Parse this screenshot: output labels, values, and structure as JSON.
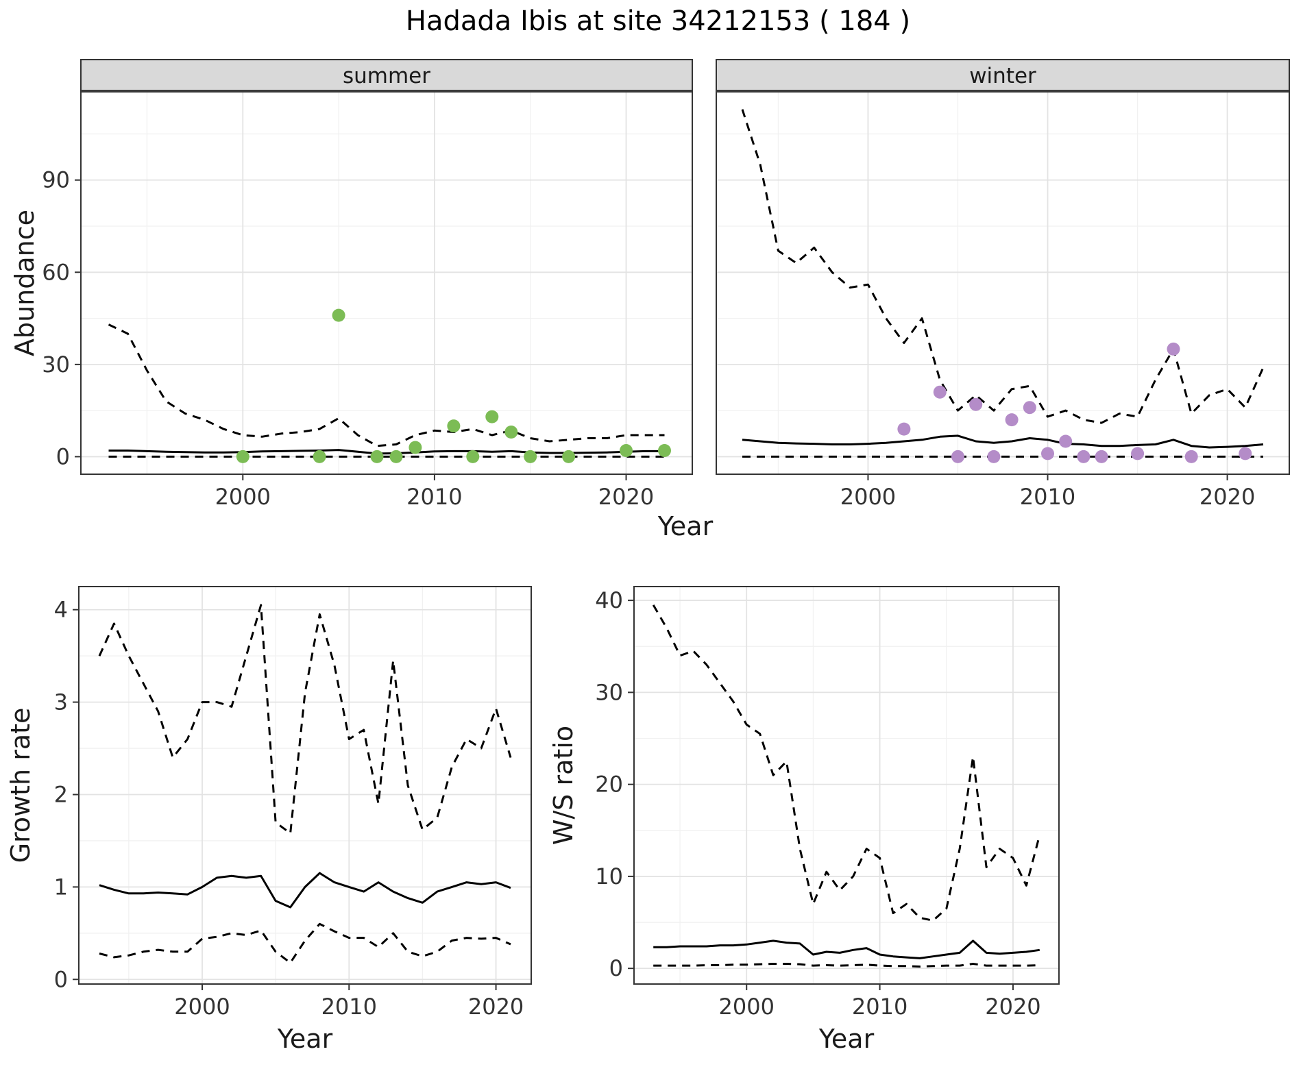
{
  "title": "Hadada Ibis at site 34212153 ( 184 )",
  "style": {
    "accent_green": "#7cbc55",
    "accent_purple": "#b48cc8",
    "grid_major": "#e3e3e3",
    "grid_minor": "#f1f1f1",
    "strip_bg": "#d9d9d9",
    "axis_text": "#333333",
    "line": "#000000",
    "border": "#333333",
    "panel_bg": "#ffffff"
  },
  "chart_data": [
    {
      "id": "abundance-summer",
      "type": "line+scatter",
      "facet": "summer",
      "xlabel": "Year",
      "ylabel": "Abundance",
      "xlim": [
        1991.55,
        2023.45
      ],
      "ylim": [
        -5.7,
        118.7
      ],
      "xticks": [
        2000,
        2010,
        2020
      ],
      "xminor": [
        1995,
        2005,
        2015
      ],
      "yticks": [
        0,
        30,
        60,
        90
      ],
      "yminor": [
        15,
        45,
        75,
        105
      ],
      "x": [
        1993,
        1994,
        1995,
        1996,
        1997,
        1998,
        1999,
        2000,
        2001,
        2002,
        2003,
        2004,
        2005,
        2006,
        2007,
        2008,
        2009,
        2010,
        2011,
        2012,
        2013,
        2014,
        2015,
        2016,
        2017,
        2018,
        2019,
        2020,
        2021,
        2022
      ],
      "series": [
        {
          "name": "upper-ci",
          "style": "dashed",
          "y": [
            43,
            40,
            28,
            18,
            14,
            12,
            9,
            7,
            6.5,
            7.5,
            8,
            9,
            12.5,
            7,
            3.5,
            4,
            7,
            8.5,
            8,
            9,
            7,
            8.5,
            6,
            5,
            5.5,
            6,
            6,
            7,
            7,
            7
          ]
        },
        {
          "name": "lower-ci",
          "style": "dashed",
          "y": [
            0,
            0,
            0,
            0,
            0,
            0,
            0,
            0,
            0,
            0,
            0,
            0,
            0,
            0,
            0,
            0,
            0,
            0,
            0,
            0,
            0,
            0,
            0,
            0,
            0,
            0,
            0,
            0,
            0,
            0
          ]
        },
        {
          "name": "fit",
          "style": "solid",
          "y": [
            2,
            2,
            1.8,
            1.6,
            1.5,
            1.4,
            1.4,
            1.5,
            1.7,
            1.8,
            1.9,
            2,
            2.2,
            1.6,
            1,
            1.1,
            1.4,
            1.7,
            1.8,
            1.8,
            1.6,
            1.8,
            1.4,
            1.2,
            1.2,
            1.3,
            1.4,
            1.6,
            1.8,
            1.8
          ]
        },
        {
          "name": "observations",
          "style": "points",
          "color": "#7cbc55",
          "x": [
            2000,
            2004,
            2005,
            2007,
            2008,
            2009,
            2011,
            2012,
            2013,
            2014,
            2015,
            2017,
            2020,
            2022
          ],
          "y": [
            0,
            0,
            46,
            0,
            0,
            3,
            10,
            0,
            13,
            8,
            0,
            0,
            2,
            2
          ]
        }
      ]
    },
    {
      "id": "abundance-winter",
      "type": "line+scatter",
      "facet": "winter",
      "xlabel": "Year",
      "ylabel": "Abundance",
      "xlim": [
        1991.55,
        2023.45
      ],
      "ylim": [
        -5.7,
        118.7
      ],
      "xticks": [
        2000,
        2010,
        2020
      ],
      "xminor": [
        1995,
        2005,
        2015
      ],
      "yticks": [
        0,
        30,
        60,
        90
      ],
      "yminor": [
        15,
        45,
        75,
        105
      ],
      "x": [
        1993,
        1994,
        1995,
        1996,
        1997,
        1998,
        1999,
        2000,
        2001,
        2002,
        2003,
        2004,
        2005,
        2006,
        2007,
        2008,
        2009,
        2010,
        2011,
        2012,
        2013,
        2014,
        2015,
        2016,
        2017,
        2018,
        2019,
        2020,
        2021,
        2022
      ],
      "series": [
        {
          "name": "upper-ci",
          "style": "dashed",
          "y": [
            113,
            95,
            67,
            63,
            68,
            60,
            55,
            56,
            45,
            37,
            45,
            25,
            15,
            20,
            15,
            22,
            23,
            13,
            15,
            12,
            11,
            14,
            13,
            25,
            35,
            14,
            20,
            22,
            16,
            29
          ]
        },
        {
          "name": "lower-ci",
          "style": "dashed",
          "y": [
            0,
            0,
            0,
            0,
            0,
            0,
            0,
            0,
            0,
            0,
            0,
            0,
            0,
            0,
            0,
            0,
            0,
            0,
            0,
            0,
            0,
            0,
            0,
            0,
            0,
            0,
            0,
            0,
            0,
            0
          ]
        },
        {
          "name": "fit",
          "style": "solid",
          "y": [
            5.5,
            5,
            4.5,
            4.3,
            4.2,
            4,
            4,
            4.2,
            4.5,
            5,
            5.5,
            6.5,
            6.8,
            5,
            4.5,
            5,
            6,
            5.5,
            4.2,
            4,
            3.5,
            3.5,
            3.8,
            4,
            5.5,
            3.5,
            3,
            3.2,
            3.5,
            4
          ]
        },
        {
          "name": "observations",
          "style": "points",
          "color": "#b48cc8",
          "x": [
            2002,
            2004,
            2005,
            2006,
            2007,
            2008,
            2009,
            2010,
            2011,
            2012,
            2013,
            2015,
            2017,
            2018,
            2021
          ],
          "y": [
            9,
            21,
            0,
            17,
            0,
            12,
            16,
            1,
            5,
            0,
            0,
            1,
            35,
            0,
            1
          ]
        }
      ]
    },
    {
      "id": "growth-rate",
      "type": "line",
      "xlabel": "Year",
      "ylabel": "Growth rate",
      "xlim": [
        1991.6,
        2022.4
      ],
      "ylim": [
        -0.05,
        4.25
      ],
      "xticks": [
        2000,
        2010,
        2020
      ],
      "xminor": [
        1995,
        2005,
        2015
      ],
      "yticks": [
        0,
        1,
        2,
        3,
        4
      ],
      "yminor": [
        0.5,
        1.5,
        2.5,
        3.5
      ],
      "x": [
        1993,
        1994,
        1995,
        1996,
        1997,
        1998,
        1999,
        2000,
        2001,
        2002,
        2003,
        2004,
        2005,
        2006,
        2007,
        2008,
        2009,
        2010,
        2011,
        2012,
        2013,
        2014,
        2015,
        2016,
        2017,
        2018,
        2019,
        2020,
        2021
      ],
      "series": [
        {
          "name": "upper-ci",
          "style": "dashed",
          "y": [
            3.5,
            3.85,
            3.5,
            3.2,
            2.9,
            2.4,
            2.6,
            3.0,
            3.0,
            2.95,
            3.5,
            4.05,
            1.7,
            1.58,
            3.1,
            3.95,
            3.4,
            2.6,
            2.7,
            1.9,
            3.45,
            2.1,
            1.62,
            1.75,
            2.3,
            2.6,
            2.5,
            2.93,
            2.4
          ]
        },
        {
          "name": "lower-ci",
          "style": "dashed",
          "y": [
            0.28,
            0.24,
            0.26,
            0.3,
            0.32,
            0.3,
            0.3,
            0.44,
            0.46,
            0.5,
            0.48,
            0.53,
            0.3,
            0.18,
            0.42,
            0.6,
            0.52,
            0.45,
            0.45,
            0.35,
            0.5,
            0.3,
            0.25,
            0.3,
            0.42,
            0.45,
            0.44,
            0.45,
            0.38
          ]
        },
        {
          "name": "fit",
          "style": "solid",
          "y": [
            1.02,
            0.97,
            0.93,
            0.93,
            0.94,
            0.93,
            0.92,
            1.0,
            1.1,
            1.12,
            1.1,
            1.12,
            0.85,
            0.78,
            1.0,
            1.15,
            1.05,
            1.0,
            0.95,
            1.05,
            0.95,
            0.88,
            0.83,
            0.95,
            1.0,
            1.05,
            1.03,
            1.05,
            0.99
          ]
        }
      ]
    },
    {
      "id": "ws-ratio",
      "type": "line",
      "xlabel": "Year",
      "ylabel": "W/S ratio",
      "xlim": [
        1991.55,
        2023.45
      ],
      "ylim": [
        -1.7,
        41.5
      ],
      "xticks": [
        2000,
        2010,
        2020
      ],
      "xminor": [
        1995,
        2005,
        2015
      ],
      "yticks": [
        0,
        10,
        20,
        30,
        40
      ],
      "yminor": [
        5,
        15,
        25,
        35
      ],
      "x": [
        1993,
        1994,
        1995,
        1996,
        1997,
        1998,
        1999,
        2000,
        2001,
        2002,
        2003,
        2004,
        2005,
        2006,
        2007,
        2008,
        2009,
        2010,
        2011,
        2012,
        2013,
        2014,
        2015,
        2016,
        2017,
        2018,
        2019,
        2020,
        2021,
        2022
      ],
      "series": [
        {
          "name": "upper-ci",
          "style": "dashed",
          "y": [
            39.5,
            37,
            34,
            34.5,
            33,
            31,
            29,
            26.5,
            25.5,
            21,
            22.5,
            13,
            7,
            10.5,
            8.5,
            10,
            13,
            12,
            6,
            7,
            5.5,
            5.2,
            6.5,
            13,
            23,
            11,
            13,
            12,
            9,
            14.5
          ]
        },
        {
          "name": "lower-ci",
          "style": "dashed",
          "y": [
            0.3,
            0.3,
            0.3,
            0.3,
            0.35,
            0.35,
            0.4,
            0.4,
            0.45,
            0.5,
            0.5,
            0.45,
            0.3,
            0.35,
            0.3,
            0.35,
            0.4,
            0.3,
            0.25,
            0.25,
            0.2,
            0.25,
            0.3,
            0.3,
            0.5,
            0.3,
            0.3,
            0.3,
            0.3,
            0.35
          ]
        },
        {
          "name": "fit",
          "style": "solid",
          "y": [
            2.3,
            2.3,
            2.4,
            2.4,
            2.4,
            2.5,
            2.5,
            2.6,
            2.8,
            3.0,
            2.8,
            2.7,
            1.5,
            1.8,
            1.7,
            2.0,
            2.2,
            1.5,
            1.3,
            1.2,
            1.1,
            1.3,
            1.5,
            1.7,
            3.0,
            1.7,
            1.6,
            1.7,
            1.8,
            2.0
          ]
        }
      ]
    }
  ]
}
